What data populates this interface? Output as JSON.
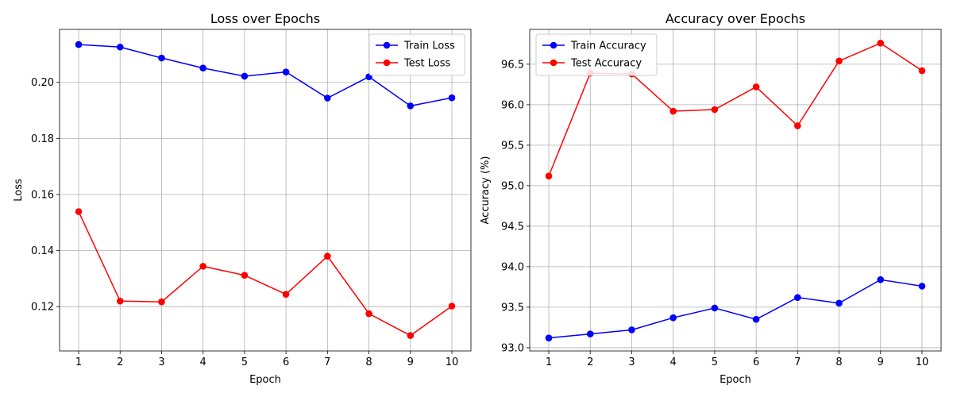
{
  "chart_data": [
    {
      "type": "line",
      "title": "Loss over Epochs",
      "xlabel": "Epoch",
      "ylabel": "Loss",
      "x": [
        1,
        2,
        3,
        4,
        5,
        6,
        7,
        8,
        9,
        10
      ],
      "xticks": [
        "1",
        "2",
        "3",
        "4",
        "5",
        "6",
        "7",
        "8",
        "9",
        "10"
      ],
      "xlim": [
        0.54,
        10.46
      ],
      "ylim": [
        0.1042,
        0.2189
      ],
      "yticks": [
        "0.12",
        "0.14",
        "0.16",
        "0.18",
        "0.20"
      ],
      "grid": true,
      "legend_position": "top-right",
      "series": [
        {
          "name": "Train Loss",
          "color": "#0000ff",
          "marker": "circle",
          "values": [
            0.2135,
            0.2126,
            0.2087,
            0.2051,
            0.2022,
            0.2037,
            0.1944,
            0.202,
            0.1916,
            0.1945
          ]
        },
        {
          "name": "Test Loss",
          "color": "#ff0000",
          "marker": "circle",
          "values": [
            0.1539,
            0.122,
            0.1217,
            0.1344,
            0.1312,
            0.1244,
            0.138,
            0.1175,
            0.1097,
            0.1202
          ]
        }
      ]
    },
    {
      "type": "line",
      "title": "Accuracy over Epochs",
      "xlabel": "Epoch",
      "ylabel": "Accuracy (%)",
      "x": [
        1,
        2,
        3,
        4,
        5,
        6,
        7,
        8,
        9,
        10
      ],
      "xticks": [
        "1",
        "2",
        "3",
        "4",
        "5",
        "6",
        "7",
        "8",
        "9",
        "10"
      ],
      "xlim": [
        0.54,
        10.46
      ],
      "ylim": [
        92.96,
        96.93
      ],
      "yticks": [
        "93.0",
        "93.5",
        "94.0",
        "94.5",
        "95.0",
        "95.5",
        "96.0",
        "96.5"
      ],
      "grid": true,
      "legend_position": "top-left",
      "series": [
        {
          "name": "Train Accuracy",
          "color": "#0000ff",
          "marker": "circle",
          "values": [
            93.12,
            93.17,
            93.22,
            93.37,
            93.49,
            93.35,
            93.62,
            93.55,
            93.84,
            93.76
          ]
        },
        {
          "name": "Test Accuracy",
          "color": "#ff0000",
          "marker": "circle",
          "values": [
            95.12,
            96.39,
            96.38,
            95.92,
            95.94,
            96.22,
            95.74,
            96.54,
            96.76,
            96.42
          ]
        }
      ]
    }
  ]
}
